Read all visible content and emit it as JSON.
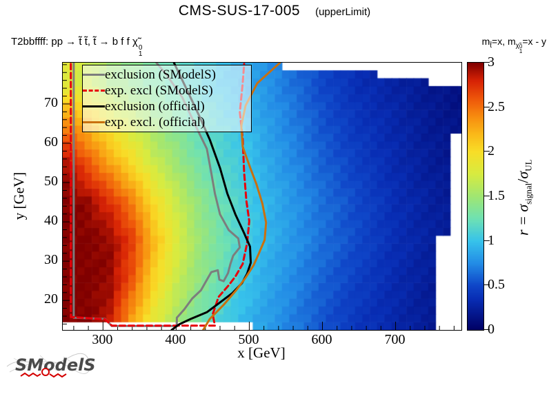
{
  "title": {
    "main": "CMS-SUS-17-005",
    "suffix": "(upperLimit)"
  },
  "process_label": {
    "prefix": "T2bbffff: pp",
    "arrow1": "→",
    "mid": "t̃ t̃, t̃",
    "arrow2": "→",
    "final": "b f f",
    "chi": "χ̃",
    "chi_sup": "0",
    "chi_sub": "1"
  },
  "mass_label": {
    "m1": "m",
    "m1_sub": "t̃",
    "eq1": "=x, ",
    "m2": "m",
    "m2_sub": "χ̃",
    "m2_sub_sup": "0",
    "m2_sub_sub": "1",
    "eq2": "=x - y"
  },
  "axes": {
    "x_label": "x [GeV]",
    "y_label": "y [GeV]",
    "x_range": [
      245,
      790
    ],
    "y_range": [
      12.5,
      80.5
    ],
    "x_major_ticks": [
      300,
      400,
      500,
      600,
      700
    ],
    "x_minor_step": 20,
    "y_major_ticks": [
      20,
      30,
      40,
      50,
      60,
      70
    ],
    "y_minor_step": 2
  },
  "legend": {
    "items": [
      {
        "label": "exclusion (SModelS)",
        "color": "#7d7d7d",
        "style": "solid"
      },
      {
        "label": "exp. excl (SModelS)",
        "color": "#e8000a",
        "style": "dashed"
      },
      {
        "label": "exclusion (official)",
        "color": "#000000",
        "style": "solid"
      },
      {
        "label": "exp. excl. (official)",
        "color": "#c9700f",
        "style": "solid"
      }
    ]
  },
  "colorbar": {
    "ticks": [
      0,
      0.5,
      1,
      1.5,
      2,
      2.5,
      3
    ],
    "range": [
      0,
      3
    ],
    "label_r": "r = ",
    "label_sigma": "σ",
    "label_signal": "signal",
    "label_slash": "/",
    "label_sigma2": "σ",
    "label_ul": "UL"
  },
  "logo": {
    "text": "SModelS"
  },
  "chart_data": {
    "type": "heatmap",
    "title": "CMS-SUS-17-005 (upperLimit)",
    "subtitle": "T2bbffff: pp → stop stop, stop → b f f neutralino1",
    "xlabel": "x [GeV]",
    "ylabel": "y [GeV]",
    "zlabel": "r = sigma_signal / sigma_UL",
    "x_range": [
      245,
      790
    ],
    "y_range": [
      12.5,
      80.5
    ],
    "z_range": [
      0,
      3
    ],
    "x_bin_width": 10,
    "y_bin_width": 2,
    "grid": {
      "x": [
        250,
        280,
        310,
        340,
        370,
        400,
        430,
        460,
        490,
        520,
        560,
        600,
        650,
        700,
        750,
        785
      ],
      "y": [
        15,
        25,
        35,
        45,
        55,
        65,
        75
      ],
      "r": [
        [
          3.0,
          3.0,
          2.85,
          2.3,
          1.85,
          1.55,
          1.3,
          1.1,
          0.95,
          0.85,
          0.7,
          0.55,
          0.4,
          0.3,
          0.2,
          0.15
        ],
        [
          3.0,
          3.0,
          2.95,
          2.6,
          2.05,
          1.7,
          1.45,
          1.25,
          1.05,
          0.9,
          0.75,
          0.6,
          0.45,
          0.32,
          0.22,
          0.17
        ],
        [
          3.0,
          3.0,
          2.95,
          2.7,
          2.2,
          1.8,
          1.5,
          1.3,
          1.1,
          0.95,
          0.8,
          0.65,
          0.5,
          0.35,
          0.25,
          0.2
        ],
        [
          3.0,
          2.95,
          2.75,
          2.45,
          2.0,
          1.7,
          1.45,
          1.25,
          1.1,
          0.95,
          0.8,
          0.65,
          0.5,
          0.35,
          0.25,
          0.2
        ],
        [
          2.9,
          2.6,
          2.3,
          2.0,
          1.7,
          1.5,
          1.3,
          1.15,
          1.05,
          0.9,
          0.75,
          0.6,
          0.45,
          0.32,
          0.22,
          0.17
        ],
        [
          2.4,
          2.2,
          1.9,
          1.7,
          1.5,
          1.35,
          1.2,
          1.1,
          1.0,
          0.85,
          0.7,
          0.55,
          0.4,
          0.3,
          0.2,
          0.15
        ],
        [
          1.8,
          1.7,
          1.5,
          1.4,
          1.3,
          1.2,
          1.1,
          1.0,
          0.9,
          0.8,
          0.65,
          0.5,
          0.35,
          0.27,
          0.18,
          0.13
        ]
      ]
    },
    "no_data_regions": [
      {
        "x": [
          545,
          790
        ],
        "y": [
          78.5,
          80.5
        ]
      },
      {
        "x": [
          680,
          790
        ],
        "y": [
          77,
          78.5
        ]
      },
      {
        "x": [
          750,
          790
        ],
        "y": [
          75,
          77
        ]
      },
      {
        "x": [
          777,
          790
        ],
        "y": [
          36,
          62
        ]
      },
      {
        "x": [
          760,
          790
        ],
        "y": [
          12.5,
          36
        ]
      },
      {
        "x": [
          245,
          507
        ],
        "y": [
          12.5,
          14.6
        ]
      }
    ],
    "colormap_stops": [
      [
        0.0,
        [
          0,
          0,
          100
        ]
      ],
      [
        0.35,
        [
          8,
          45,
          180
        ]
      ],
      [
        0.5,
        [
          15,
          70,
          200
        ]
      ],
      [
        0.75,
        [
          35,
          140,
          230
        ]
      ],
      [
        1.0,
        [
          55,
          195,
          235
        ]
      ],
      [
        1.25,
        [
          110,
          225,
          180
        ]
      ],
      [
        1.5,
        [
          160,
          230,
          115
        ]
      ],
      [
        1.75,
        [
          215,
          235,
          65
        ]
      ],
      [
        2.0,
        [
          248,
          222,
          40
        ]
      ],
      [
        2.2,
        [
          250,
          185,
          25
        ]
      ],
      [
        2.4,
        [
          247,
          140,
          15
        ]
      ],
      [
        2.6,
        [
          238,
          85,
          10
        ]
      ],
      [
        2.8,
        [
          215,
          35,
          5
        ]
      ],
      [
        3.0,
        [
          128,
          0,
          0
        ]
      ]
    ],
    "curves": [
      {
        "name": "exclusion (SModelS)",
        "color": "#7d7d7d",
        "style": "solid",
        "width": 3,
        "points": [
          [
            260,
            80.5
          ],
          [
            260,
            60
          ],
          [
            260,
            35
          ],
          [
            260,
            15.6
          ],
          [
            303,
            15.3
          ],
          [
            312,
            13.5
          ],
          [
            401,
            13.5
          ],
          [
            401,
            15.6
          ],
          [
            411,
            17.7
          ],
          [
            422,
            20.5
          ],
          [
            434,
            22.6
          ],
          [
            440,
            24.6
          ],
          [
            448,
            27.2
          ],
          [
            457,
            27.7
          ],
          [
            459,
            25.3
          ],
          [
            465,
            24.9
          ],
          [
            471,
            27.0
          ],
          [
            474,
            29.2
          ],
          [
            478,
            31.4
          ],
          [
            487,
            33.5
          ],
          [
            485,
            35.8
          ],
          [
            472,
            37.9
          ],
          [
            460,
            41.9
          ],
          [
            453,
            47.2
          ],
          [
            448,
            52.5
          ],
          [
            442,
            58.6
          ],
          [
            428,
            63.9
          ],
          [
            408,
            71.8
          ],
          [
            387,
            77.4
          ],
          [
            373,
            80.5
          ]
        ]
      },
      {
        "name": "exp. excl (SModelS)",
        "color": "#e8000a",
        "style": "dashed",
        "width": 3,
        "points": [
          [
            256,
            80.2
          ],
          [
            256,
            55
          ],
          [
            256,
            30
          ],
          [
            256,
            15.8
          ],
          [
            303,
            15.2
          ],
          [
            312,
            13.6
          ],
          [
            453,
            13.6
          ],
          [
            450,
            16.5
          ],
          [
            458,
            20.9
          ],
          [
            472,
            23.9
          ],
          [
            481,
            26.1
          ],
          [
            491,
            29.3
          ],
          [
            497,
            34.6
          ],
          [
            500,
            40.2
          ],
          [
            496,
            45.4
          ],
          [
            493,
            52.5
          ],
          [
            491,
            61.2
          ],
          [
            487,
            67.9
          ],
          [
            491,
            75.3
          ],
          [
            493,
            80.2
          ]
        ]
      },
      {
        "name": "exclusion (official)",
        "color": "#000000",
        "style": "solid",
        "width": 3,
        "points": [
          [
            397,
            80.5
          ],
          [
            414,
            73.9
          ],
          [
            432,
            66.8
          ],
          [
            446,
            60.9
          ],
          [
            460,
            53.7
          ],
          [
            470,
            47.2
          ],
          [
            481,
            41.9
          ],
          [
            492,
            37.5
          ],
          [
            501,
            33.7
          ],
          [
            502,
            29.6
          ],
          [
            497,
            26.8
          ],
          [
            490,
            24.4
          ],
          [
            477,
            21.9
          ],
          [
            460,
            19.5
          ],
          [
            442,
            17.0
          ],
          [
            420,
            15.3
          ],
          [
            404,
            13.9
          ],
          [
            394,
            12.5
          ]
        ]
      },
      {
        "name": "exp. excl. (official)",
        "color": "#c9700f",
        "style": "solid",
        "width": 3,
        "points": [
          [
            542,
            80.5
          ],
          [
            511,
            75.3
          ],
          [
            495,
            69.6
          ],
          [
            489,
            64.4
          ],
          [
            491,
            59.1
          ],
          [
            501,
            53.9
          ],
          [
            510,
            49.5
          ],
          [
            518,
            44.6
          ],
          [
            523,
            39.8
          ],
          [
            521,
            35.4
          ],
          [
            513,
            31.9
          ],
          [
            506,
            29.0
          ],
          [
            495,
            25.8
          ],
          [
            482,
            22.6
          ],
          [
            465,
            18.9
          ],
          [
            446,
            15.3
          ],
          [
            437,
            12.5
          ]
        ]
      }
    ],
    "legend_position": "top-left",
    "grid_lines": false
  }
}
